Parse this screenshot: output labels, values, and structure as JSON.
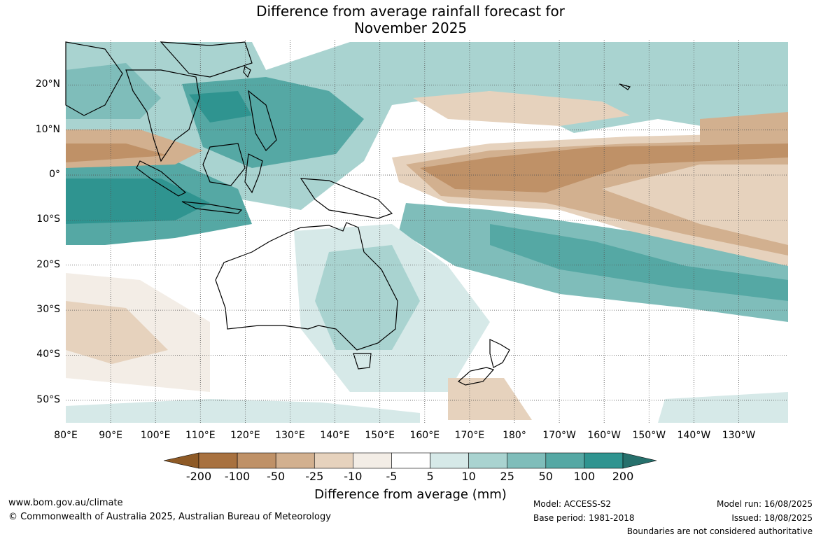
{
  "title_line1": "Difference from average rainfall forecast for",
  "title_line2": "November 2025",
  "map": {
    "lat_labels": [
      {
        "text": "20°N",
        "lat": 20
      },
      {
        "text": "10°N",
        "lat": 10
      },
      {
        "text": "0°",
        "lat": 0
      },
      {
        "text": "10°S",
        "lat": -10
      },
      {
        "text": "20°S",
        "lat": -20
      },
      {
        "text": "30°S",
        "lat": -30
      },
      {
        "text": "40°S",
        "lat": -40
      },
      {
        "text": "50°S",
        "lat": -50
      }
    ],
    "lon_labels": [
      {
        "text": "80°E",
        "lon": 80
      },
      {
        "text": "90°E",
        "lon": 90
      },
      {
        "text": "100°E",
        "lon": 100
      },
      {
        "text": "110°E",
        "lon": 110
      },
      {
        "text": "120°E",
        "lon": 120
      },
      {
        "text": "130°E",
        "lon": 130
      },
      {
        "text": "140°E",
        "lon": 140
      },
      {
        "text": "150°E",
        "lon": 150
      },
      {
        "text": "160°E",
        "lon": 160
      },
      {
        "text": "170°E",
        "lon": 170
      },
      {
        "text": "180°",
        "lon": 180
      },
      {
        "text": "170°W",
        "lon": 190
      },
      {
        "text": "160°W",
        "lon": 200
      },
      {
        "text": "150°W",
        "lon": 210
      },
      {
        "text": "140°W",
        "lon": 220
      },
      {
        "text": "130°W",
        "lon": 230
      }
    ],
    "lon_range": [
      80,
      241
    ],
    "lat_range": [
      -55,
      30
    ]
  },
  "colorbar": {
    "title": "Difference from average (mm)",
    "labels": [
      "-200",
      "-100",
      "-50",
      "-25",
      "-10",
      "-5",
      "5",
      "10",
      "25",
      "50",
      "100",
      "200"
    ],
    "low_color": "#8e5a26",
    "high_color": "#26706c",
    "colors": [
      "#a8713f",
      "#bf9167",
      "#d2b08f",
      "#e6d2bd",
      "#f3ede6",
      "#ffffff",
      "#d6e9e8",
      "#a9d3d0",
      "#7fbdba",
      "#55a8a4",
      "#2f9490"
    ]
  },
  "footer": {
    "website": "www.bom.gov.au/climate",
    "copyright": "© Commonwealth of Australia 2025, Australian Bureau of Meteorology",
    "model": "Model: ACCESS-S2",
    "base_period": "Base period: 1981-2018",
    "model_run": "Model run: 16/08/2025",
    "issued": "Issued: 18/08/2025",
    "disclaimer": "Boundaries are not considered authoritative"
  }
}
